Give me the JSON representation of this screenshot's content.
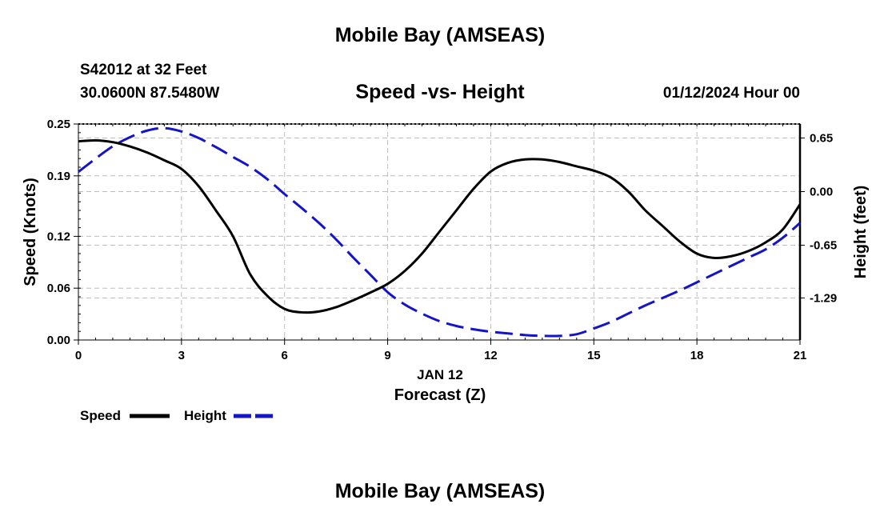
{
  "page": {
    "top_title": "Mobile Bay (AMSEAS)",
    "bottom_title": "Mobile Bay (AMSEAS)",
    "station_label": "S42012 at 32 Feet",
    "coordinates": "30.0600N  87.5480W",
    "date_hour": "01/12/2024 Hour 00"
  },
  "chart_data": {
    "type": "line",
    "title": "Speed -vs- Height",
    "xlabel": "Forecast (Z)",
    "xdate_label": "JAN 12",
    "ylabel_left": "Speed (Knots)",
    "ylabel_right": "Height (feet)",
    "xlim": [
      0,
      21
    ],
    "ylim_left": [
      0,
      0.25
    ],
    "ylim_right": [
      -1.8,
      0.82
    ],
    "x_ticks": [
      "0",
      "3",
      "6",
      "9",
      "12",
      "15",
      "18",
      "21"
    ],
    "y_ticks_left": [
      "0.00",
      "0.06",
      "0.12",
      "0.19",
      "0.25"
    ],
    "y_ticks_right": [
      "0.65",
      "0.00",
      "-0.65",
      "-1.29"
    ],
    "legend": {
      "position": "bottom-left",
      "speed": "Speed",
      "height": "Height"
    },
    "colors": {
      "speed": "#000000",
      "height": "#1414c8",
      "grid": "#bdbdbd"
    },
    "series": [
      {
        "name": "Speed",
        "axis": "left",
        "style": "solid",
        "x": [
          0,
          0.5,
          1,
          1.5,
          2,
          2.5,
          3,
          3.5,
          4,
          4.5,
          5,
          5.5,
          6,
          6.5,
          7,
          7.5,
          8,
          8.5,
          9,
          9.5,
          10,
          10.5,
          11,
          11.5,
          12,
          12.5,
          13,
          13.5,
          14,
          14.5,
          15,
          15.5,
          16,
          16.5,
          17,
          17.5,
          18,
          18.5,
          19,
          19.5,
          20,
          20.5,
          21
        ],
        "values": [
          0.23,
          0.231,
          0.229,
          0.224,
          0.217,
          0.208,
          0.198,
          0.178,
          0.15,
          0.12,
          0.076,
          0.051,
          0.036,
          0.032,
          0.033,
          0.038,
          0.046,
          0.055,
          0.065,
          0.08,
          0.1,
          0.125,
          0.15,
          0.175,
          0.195,
          0.205,
          0.209,
          0.209,
          0.206,
          0.201,
          0.196,
          0.188,
          0.172,
          0.15,
          0.132,
          0.114,
          0.1,
          0.095,
          0.097,
          0.103,
          0.113,
          0.128,
          0.157
        ]
      },
      {
        "name": "Height",
        "axis": "right",
        "style": "dashed",
        "x": [
          0,
          0.5,
          1,
          1.5,
          2,
          2.5,
          3,
          3.5,
          4,
          4.5,
          5,
          5.5,
          6,
          6.5,
          7,
          7.5,
          8,
          8.5,
          9,
          9.5,
          10,
          10.5,
          11,
          11.5,
          12,
          12.5,
          13,
          13.5,
          14,
          14.5,
          15,
          15.5,
          16,
          16.5,
          17,
          17.5,
          18,
          18.5,
          19,
          19.5,
          20,
          20.5,
          21
        ],
        "values": [
          0.24,
          0.4,
          0.55,
          0.66,
          0.74,
          0.77,
          0.73,
          0.65,
          0.54,
          0.42,
          0.3,
          0.15,
          -0.03,
          -0.2,
          -0.38,
          -0.58,
          -0.8,
          -1.01,
          -1.22,
          -1.37,
          -1.48,
          -1.57,
          -1.63,
          -1.67,
          -1.7,
          -1.72,
          -1.74,
          -1.75,
          -1.75,
          -1.73,
          -1.66,
          -1.58,
          -1.48,
          -1.38,
          -1.29,
          -1.2,
          -1.1,
          -1.0,
          -0.9,
          -0.8,
          -0.7,
          -0.56,
          -0.38
        ]
      }
    ]
  }
}
